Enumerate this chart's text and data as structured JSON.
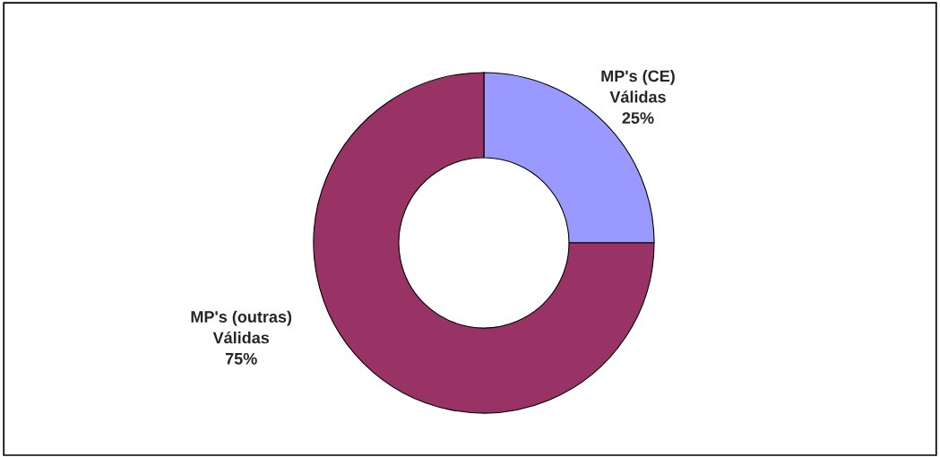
{
  "chart_data": {
    "type": "donut",
    "categories": [
      "MP's (CE)\nVálidas",
      "MP's (outras)\nVálidas"
    ],
    "values": [
      25,
      75
    ],
    "colors": [
      "#9999ff",
      "#993366"
    ],
    "value_labels": [
      "25%",
      "75%"
    ],
    "legend": false
  }
}
